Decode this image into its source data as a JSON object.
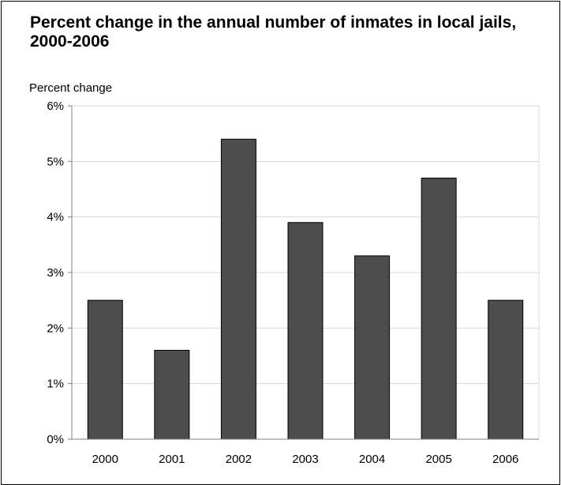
{
  "chart_data": {
    "type": "bar",
    "title": "Percent change in the annual number of inmates in local jails, 2000-2006",
    "ylabel": "Percent change",
    "xlabel": "",
    "categories": [
      "2000",
      "2001",
      "2002",
      "2003",
      "2004",
      "2005",
      "2006"
    ],
    "values": [
      2.5,
      1.6,
      5.4,
      3.9,
      3.3,
      4.7,
      2.5
    ],
    "yticks": [
      "0%",
      "1%",
      "2%",
      "3%",
      "4%",
      "5%",
      "6%"
    ],
    "ylim": [
      0,
      6
    ],
    "grid": true,
    "bar_color": "#4d4d4d",
    "bar_edge_color": "#000000",
    "grid_color": "#d9d9d9"
  }
}
